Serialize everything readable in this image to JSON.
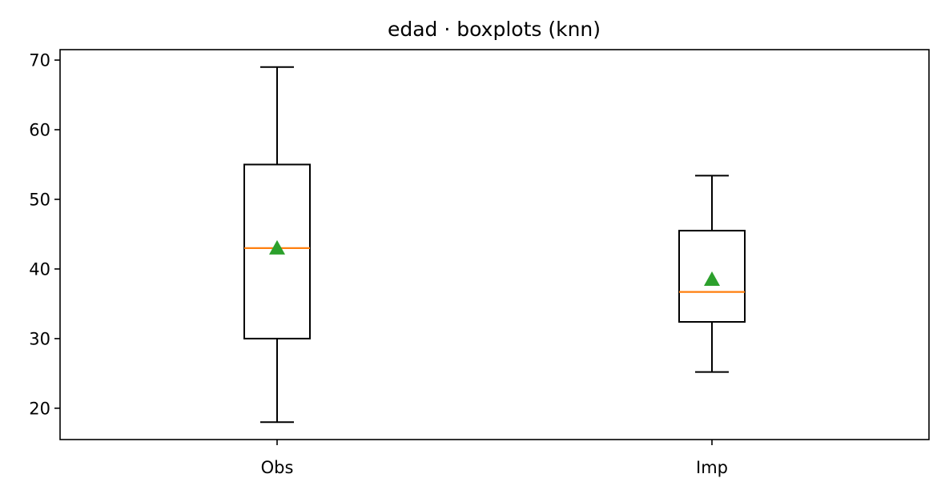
{
  "chart_data": {
    "type": "boxplot",
    "title": "edad · boxplots (knn)",
    "xlabel": "",
    "ylabel": "",
    "categories": [
      "Obs",
      "Imp"
    ],
    "ylim": [
      15.5,
      71.5
    ],
    "yticks": [
      20,
      30,
      40,
      50,
      60,
      70
    ],
    "grid": false,
    "boxes": [
      {
        "name": "Obs",
        "whisker_low": 18,
        "q1": 30,
        "median": 43,
        "q3": 55,
        "whisker_high": 69,
        "mean": 43
      },
      {
        "name": "Imp",
        "whisker_low": 25.2,
        "q1": 32.4,
        "median": 36.7,
        "q3": 45.5,
        "whisker_high": 53.4,
        "mean": 38.5
      }
    ],
    "colors": {
      "box": "#000000",
      "median": "#ff7f0e",
      "mean": "#2ca02c"
    }
  }
}
